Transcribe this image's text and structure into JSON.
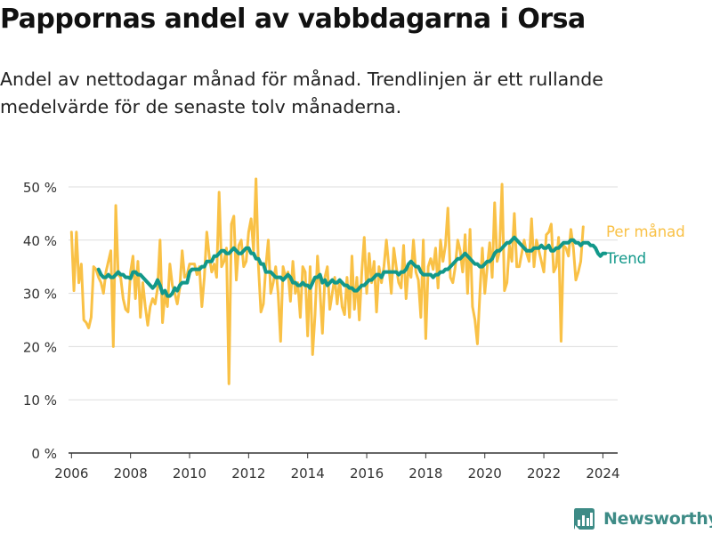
{
  "title": "Pappornas andel av vabbdagarna i Orsa",
  "subtitle": "Andel av nettodagar månad för månad. Trendlinjen är ett rullande medelvärde för de senaste tolv månaderna.",
  "brand": {
    "name": "Newsworthy",
    "icon": "newsworthy-logo-icon",
    "color": "#3d8b86"
  },
  "colors": {
    "monthly": "#f9c146",
    "trend": "#12988a",
    "grid": "#dddddd",
    "axis": "#333333"
  },
  "chart_data": {
    "type": "line",
    "title": "",
    "xlabel": "",
    "ylabel": "",
    "ylim": [
      0,
      52
    ],
    "xlim": [
      2005.9,
      2024.5
    ],
    "y_ticks": [
      0,
      10,
      20,
      30,
      40,
      50
    ],
    "y_tick_labels": [
      "0 %",
      "10 %",
      "20 %",
      "30 %",
      "40 %",
      "50 %"
    ],
    "x_ticks": [
      2006,
      2008,
      2010,
      2012,
      2014,
      2016,
      2018,
      2020,
      2022,
      2024
    ],
    "x_tick_labels": [
      "2006",
      "2008",
      "2010",
      "2012",
      "2014",
      "2016",
      "2018",
      "2020",
      "2022",
      "2024"
    ],
    "grid": "horizontal",
    "legend": "right, inline labels at line ends",
    "series": [
      {
        "name": "Per månad",
        "color": "#f9c146",
        "start": "2006-01",
        "step": "month",
        "values": [
          41.5,
          30.5,
          41.5,
          32,
          35.5,
          25,
          24.5,
          23.5,
          25.5,
          35,
          34.5,
          33,
          32,
          30,
          34,
          36,
          38,
          20,
          46.5,
          33.5,
          33,
          29,
          27,
          26.5,
          34,
          37,
          29,
          36,
          25.5,
          32,
          27.5,
          24,
          27.5,
          29,
          28,
          31,
          40,
          24.5,
          30,
          27.5,
          35.5,
          31.5,
          30,
          28,
          31,
          38,
          33,
          33.5,
          35.5,
          35.5,
          35.5,
          33.5,
          35,
          27.5,
          33,
          41.5,
          37,
          34,
          35.5,
          33,
          49,
          35,
          36,
          38.5,
          13,
          43,
          44.5,
          32.5,
          39,
          40,
          35,
          36,
          41.5,
          44,
          38,
          51.5,
          35,
          26.5,
          28,
          35,
          40,
          30,
          32,
          35,
          30,
          21,
          35,
          33,
          34,
          28.5,
          36,
          30,
          32,
          25.5,
          35,
          34,
          22,
          35,
          18.5,
          26,
          37,
          30.5,
          22.5,
          33,
          35,
          27,
          30,
          33,
          28,
          32.5,
          27.5,
          26,
          33,
          25.5,
          37,
          27,
          33,
          25,
          34,
          40.5,
          30,
          37.5,
          32,
          36,
          26.5,
          35,
          32,
          35,
          40,
          35,
          30,
          38.5,
          35,
          32,
          31,
          39,
          29,
          35,
          33,
          40,
          34,
          32.5,
          25.5,
          40,
          21.5,
          35,
          36.5,
          34.5,
          38.5,
          31,
          40,
          36,
          39,
          46,
          33,
          32,
          35,
          40,
          38,
          34,
          41,
          30,
          42,
          27.5,
          25,
          20.5,
          30,
          38.5,
          30,
          35,
          39.5,
          33,
          47,
          36,
          38,
          50.5,
          30.5,
          32,
          39,
          36,
          45,
          35,
          35,
          37.5,
          40,
          37.5,
          36,
          44,
          35,
          40,
          38,
          36,
          34,
          41,
          41.5,
          43,
          34,
          35,
          40.5,
          21,
          39,
          38.5,
          37,
          42,
          38.5,
          32.5,
          34,
          36,
          42.5
        ]
      },
      {
        "name": "Trend",
        "color": "#12988a",
        "start": "2006-12",
        "step": "month",
        "values": [
          34.5,
          33.5,
          33,
          33,
          33.5,
          33,
          33,
          33.5,
          34,
          33.5,
          33.5,
          33,
          33,
          32.8,
          34,
          34,
          33.5,
          33.5,
          33,
          32.5,
          32,
          31.5,
          31,
          31.5,
          32.5,
          31.5,
          30,
          30.5,
          29.5,
          29.5,
          30,
          31,
          30.5,
          31.5,
          32,
          32,
          32,
          34,
          34.5,
          34.5,
          34.5,
          34.5,
          35,
          35,
          36,
          36,
          36,
          37,
          37,
          37.5,
          38,
          38,
          37.5,
          37.5,
          38,
          38.5,
          38,
          37.5,
          37.5,
          38,
          38.5,
          38.5,
          37.5,
          37.5,
          36.5,
          36.5,
          35.5,
          35.5,
          34,
          34,
          34,
          33.5,
          33,
          33,
          33,
          32.5,
          33,
          33.5,
          33,
          32,
          32,
          31.5,
          31.5,
          32,
          31.5,
          31.5,
          31,
          32,
          33,
          33,
          33.5,
          32,
          32.5,
          31.5,
          32,
          32.5,
          32,
          32,
          32.5,
          32,
          31.5,
          31.5,
          31,
          31,
          30.5,
          30.5,
          31,
          31.5,
          31.5,
          32,
          32.5,
          32.5,
          33,
          33.5,
          33.5,
          33,
          34,
          34,
          34,
          34,
          34,
          34,
          33.5,
          34,
          34,
          34.5,
          35.5,
          36,
          35.5,
          35,
          35,
          34,
          33.5,
          33.5,
          33.5,
          33.5,
          33,
          33.5,
          33.5,
          34,
          34,
          34.5,
          34.5,
          35,
          35.5,
          36,
          36.5,
          36.5,
          37,
          37.5,
          37,
          36.5,
          36,
          35.5,
          35.5,
          35,
          35,
          35.5,
          36,
          36,
          36.5,
          37.5,
          38,
          38,
          38.5,
          39,
          39.5,
          39.5,
          40,
          40.5,
          40,
          39.5,
          39,
          38.5,
          38,
          38,
          38,
          38.5,
          38.5,
          38.5,
          39,
          38.5,
          38.5,
          39,
          38,
          38,
          38.5,
          38.5,
          39,
          39.5,
          39.5,
          39.5,
          40,
          40,
          39.5,
          39.5,
          39,
          39.5,
          39.5,
          39.5,
          39,
          39,
          38.5,
          37.5,
          37,
          37.5,
          37.5
        ]
      }
    ]
  }
}
